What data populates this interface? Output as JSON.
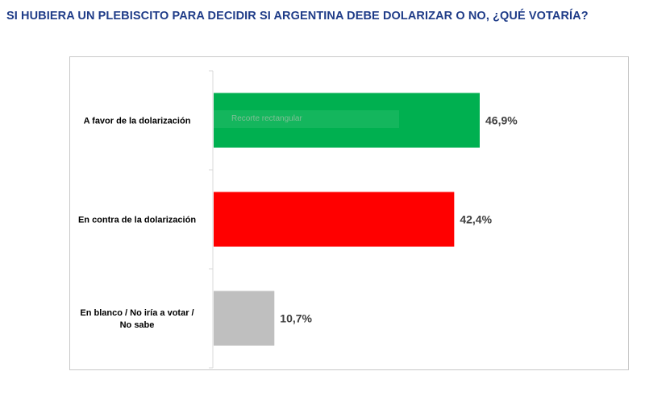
{
  "title": "SI HUBIERA UN PLEBISCITO PARA DECIDIR SI ARGENTINA DEBE DOLARIZAR O NO, ¿QUÉ VOTARÍA?",
  "overlay_text": "Recorte rectangular",
  "chart_data": {
    "type": "bar",
    "orientation": "horizontal",
    "categories": [
      [
        "A favor de la dolarización"
      ],
      [
        "En contra de la dolarización"
      ],
      [
        "En blanco / No iría a votar /",
        "No sabe"
      ]
    ],
    "values": [
      46.9,
      42.4,
      10.7
    ],
    "value_labels": [
      "46,9%",
      "42,4%",
      "10,7%"
    ],
    "colors": [
      "#00B050",
      "#FF0000",
      "#BFBFBF"
    ],
    "xlim": [
      0,
      60
    ],
    "grid": false,
    "legend": "none"
  }
}
